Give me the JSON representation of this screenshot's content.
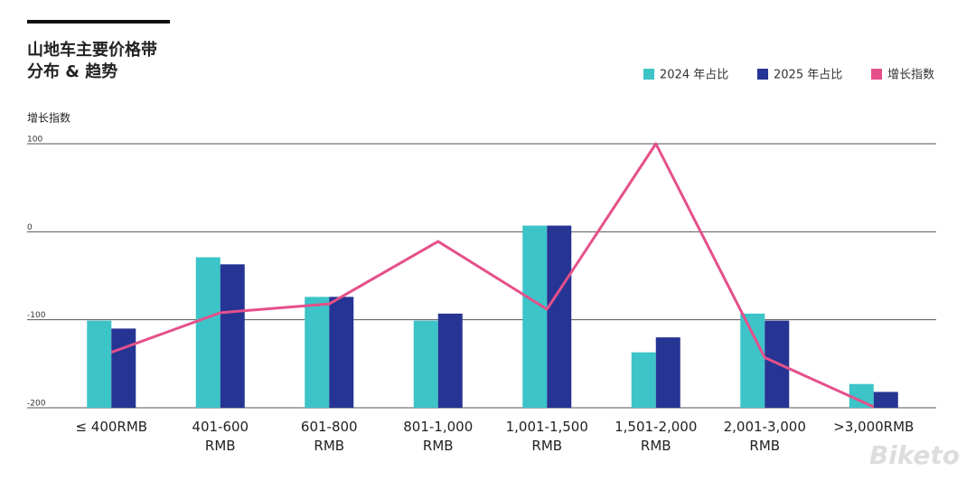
{
  "chart_data": {
    "type": "bar-line",
    "title": [
      "山地车主要价格带",
      "分布 & 趋势"
    ],
    "y_label": "增长指数",
    "categories": [
      [
        "≤ 400RMB"
      ],
      [
        "401-600",
        "RMB"
      ],
      [
        "601-800",
        "RMB"
      ],
      [
        "801-1,000",
        "RMB"
      ],
      [
        "1,001-1,500",
        "RMB"
      ],
      [
        "1,501-2,000",
        "RMB"
      ],
      [
        "2,001-3,000",
        "RMB"
      ],
      [
        ">3,000RMB"
      ]
    ],
    "series": [
      {
        "name": "2024 年占比",
        "color": "#3cc4c8",
        "kind": "bar",
        "values": [
          -101,
          -29,
          -74,
          -101,
          7,
          -137,
          -93,
          -173
        ]
      },
      {
        "name": "2025 年占比",
        "color": "#263494",
        "kind": "bar",
        "values": [
          -110,
          -37,
          -74,
          -93,
          7,
          -120,
          -101,
          -182
        ]
      },
      {
        "name": "增长指数",
        "color": "#e5508a",
        "kind": "line",
        "values": [
          -137,
          -92,
          -82,
          -11,
          -88,
          100,
          -143,
          -199
        ]
      }
    ],
    "ylim": [
      -200,
      100
    ],
    "yticks": [
      100,
      0,
      -100,
      -200
    ],
    "grid": true,
    "watermark": "Biketo"
  }
}
